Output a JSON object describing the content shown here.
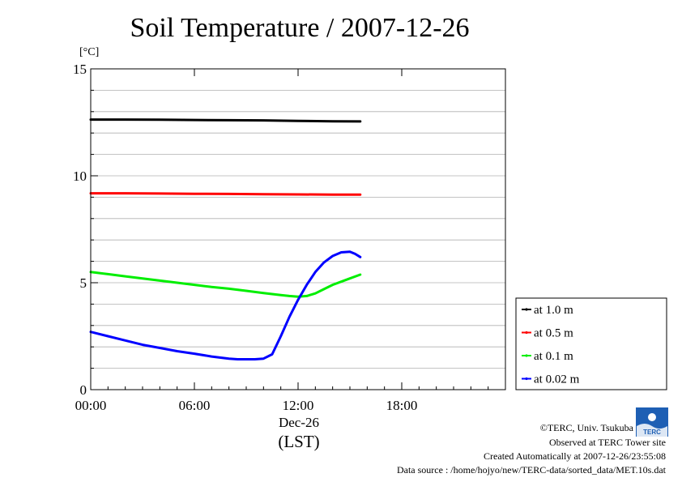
{
  "chart_data": {
    "type": "line",
    "title": "Soil Temperature / 2007-12-26",
    "ylabel": "[°C]",
    "ylim": [
      0,
      15
    ],
    "yticks": [
      "0",
      "5",
      "10",
      "15"
    ],
    "xlim_hours": [
      0,
      24
    ],
    "xticks": [
      {
        "hour": 0,
        "label": "00:00"
      },
      {
        "hour": 6,
        "label": "06:00"
      },
      {
        "hour": 12,
        "label": "12:00"
      },
      {
        "hour": 18,
        "label": "18:00"
      }
    ],
    "xdate_label": "Dec-26",
    "xunit_label": "(LST)",
    "grid": true,
    "legend_position": "right",
    "series": [
      {
        "name": "at 1.0 m",
        "color": "#000000",
        "x": [
          0,
          2,
          4,
          6,
          8,
          10,
          12,
          14,
          15.6
        ],
        "y": [
          12.63,
          12.63,
          12.62,
          12.61,
          12.6,
          12.59,
          12.57,
          12.55,
          12.54
        ]
      },
      {
        "name": "at 0.5 m",
        "color": "#ff0000",
        "x": [
          0,
          2,
          4,
          6,
          8,
          10,
          12,
          14,
          15.6
        ],
        "y": [
          9.18,
          9.18,
          9.17,
          9.16,
          9.15,
          9.14,
          9.13,
          9.12,
          9.12
        ]
      },
      {
        "name": "at 0.1 m",
        "color": "#00ee00",
        "x": [
          0,
          1,
          2,
          3,
          4,
          5,
          6,
          7,
          8,
          9,
          10,
          11,
          11.5,
          12,
          12.5,
          13,
          13.5,
          14,
          14.5,
          15,
          15.6
        ],
        "y": [
          5.5,
          5.4,
          5.3,
          5.2,
          5.1,
          5.0,
          4.9,
          4.8,
          4.72,
          4.62,
          4.52,
          4.42,
          4.38,
          4.35,
          4.38,
          4.5,
          4.7,
          4.9,
          5.05,
          5.2,
          5.38
        ]
      },
      {
        "name": "at 0.02 m",
        "color": "#0000ff",
        "x": [
          0,
          1,
          2,
          3,
          4,
          5,
          6,
          7,
          8,
          8.5,
          9,
          9.5,
          10,
          10.5,
          11,
          11.5,
          12,
          12.5,
          13,
          13.5,
          14,
          14.5,
          15,
          15.3,
          15.6
        ],
        "y": [
          2.7,
          2.5,
          2.3,
          2.1,
          1.95,
          1.8,
          1.68,
          1.55,
          1.45,
          1.42,
          1.42,
          1.42,
          1.45,
          1.65,
          2.5,
          3.4,
          4.2,
          4.9,
          5.5,
          5.95,
          6.25,
          6.42,
          6.45,
          6.35,
          6.2
        ]
      }
    ]
  },
  "footer": {
    "copyright": "©TERC, Univ. Tsukuba",
    "observed": "Observed at TERC Tower site",
    "created": "Created Automatically at 2007-12-26/23:55:08",
    "source": "Data source : /home/hojyo/new/TERC-data/sorted_data/MET.10s.dat",
    "logo_text": "TERC"
  }
}
